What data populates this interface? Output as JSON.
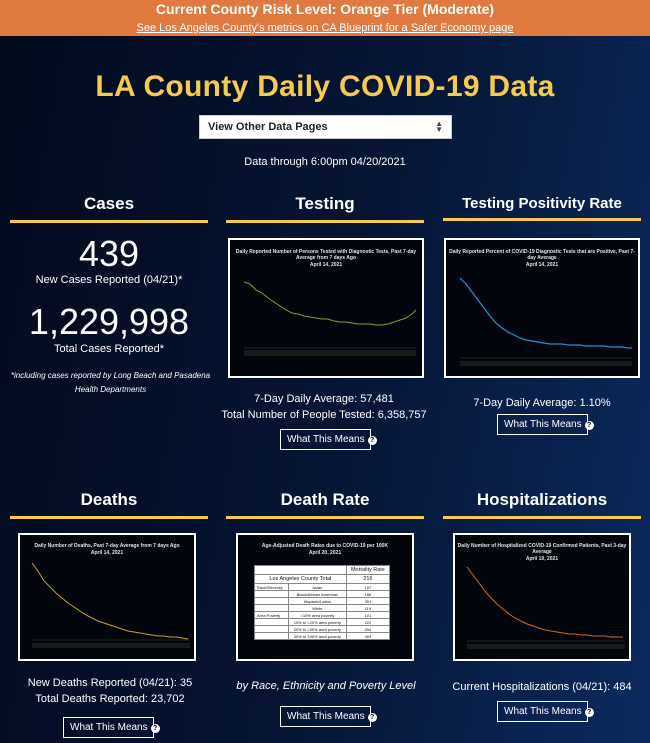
{
  "banner": {
    "title": "Current County Risk Level: Orange Tier (Moderate)",
    "link": "See Los Angeles County's metrics on CA Blueprint for a Safer Economy page"
  },
  "page": {
    "title": "LA County Daily COVID-19 Data",
    "select_value": "View Other Data Pages",
    "data_through": "Data through 6:00pm 04/20/2021"
  },
  "cases": {
    "heading": "Cases",
    "new_cases": "439",
    "new_cases_label": "New Cases Reported (04/21)*",
    "total_cases": "1,229,998",
    "total_cases_label": "Total Cases Reported*",
    "note": "*including cases reported by Long Beach and Pasadena Health Departments"
  },
  "testing": {
    "heading": "Testing",
    "chart_title": "Daily Reported Number of Persons Tested with Diagnostic Tests, Past 7-day Average from 7 days Ago",
    "chart_date": "April 14, 2021",
    "avg": "7-Day Daily Average: 57,481",
    "total": "Total Number of People Tested: 6,358,757",
    "button": "What This Means",
    "line_color": "#8e9a2c"
  },
  "positivity": {
    "heading": "Testing Positivity Rate",
    "chart_title": "Daily Reported Percent of COVID-19 Diagnostic Tests that are Positive, Past 7-day Average",
    "chart_date": "April 14, 2021",
    "avg": "7-Day Daily Average: 1.10%",
    "button": "What This Means",
    "line_color": "#2a8fd0"
  },
  "deaths": {
    "heading": "Deaths",
    "chart_title": "Daily Number of Deaths, Past 7-day Average from 7 days Ago",
    "chart_date": "April 14, 2021",
    "new_deaths": "New Deaths Reported (04/21): 35",
    "total_deaths": "Total Deaths Reported: 23,702",
    "button": "What This Means",
    "line_color": "#c9a227"
  },
  "death_rate": {
    "heading": "Death Rate",
    "chart_title": "Age-Adjusted Death Rates due to COVID-19 per 100K",
    "chart_date": "April 20, 2021",
    "col_header": "Mortality Rate",
    "total_label": "Los Angeles County Total",
    "total_value": "216",
    "rows": [
      {
        "group": "Race/Ethnicity",
        "label": "Asian",
        "value": "157"
      },
      {
        "group": "",
        "label": "Black/African American",
        "value": "186"
      },
      {
        "group": "",
        "label": "Hispanic/Latino",
        "value": "351"
      },
      {
        "group": "",
        "label": "White",
        "value": "119"
      },
      {
        "group": "Area Poverty",
        "label": "<10% area poverty",
        "value": "101"
      },
      {
        "group": "",
        "label": "10% to <20% area poverty",
        "value": "222"
      },
      {
        "group": "",
        "label": "20% to <30% area poverty",
        "value": "294"
      },
      {
        "group": "",
        "label": "30% to 100% area poverty",
        "value": "403"
      }
    ],
    "subline": "by Race, Ethnicity and Poverty Level",
    "button": "What This Means"
  },
  "hospitalizations": {
    "heading": "Hospitalizations",
    "chart_title": "Daily Number of Hospitalized COVID-19 Confirmed Patients, Past 3-day Average",
    "chart_date": "April 19, 2021",
    "current": "Current Hospitalizations (04/21): 484",
    "button": "What This Means",
    "line_color": "#d9641f"
  }
}
